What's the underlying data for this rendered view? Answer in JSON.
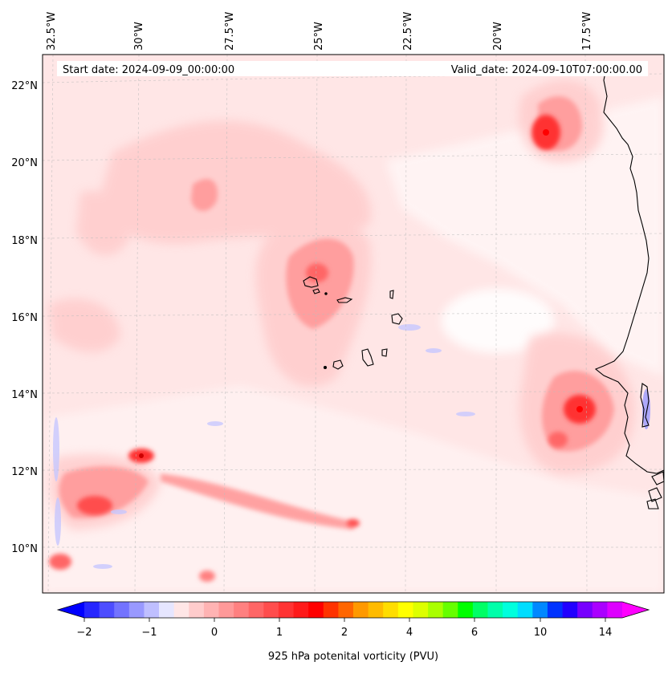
{
  "map": {
    "start_label": "Start date: 2024-09-09_00:00:00",
    "valid_label": "Valid_date: 2024-09-10T07:00:00.00",
    "lon_labels": [
      "32.5°W",
      "30°W",
      "27.5°W",
      "25°W",
      "22.5°W",
      "20°W",
      "17.5°W"
    ],
    "lat_labels": [
      "22°N",
      "20°N",
      "18°N",
      "16°N",
      "14°N",
      "12°N",
      "10°N"
    ],
    "gridlines": true,
    "coastline_color": "#000000",
    "field_features": [
      {
        "label": "background pale-red PV band",
        "level": 0.2
      },
      {
        "label": "NE maximum near Western Sahara coast",
        "level": 2.0
      },
      {
        "label": "SE vortex off Senegal",
        "level": 2.5
      },
      {
        "label": "SW filament maximum",
        "level": 2.5
      },
      {
        "label": "central band near Cabo Verde",
        "level": 1.0
      }
    ]
  },
  "colorbar": {
    "label": "925 hPa potenital vorticity (PVU)",
    "tick_labels": [
      "−2",
      "−1",
      "0",
      "1",
      "2",
      "4",
      "6",
      "10",
      "14"
    ],
    "colors": [
      "#0000ff",
      "#2626ff",
      "#4d4dff",
      "#7373ff",
      "#9999ff",
      "#bfbfff",
      "#e6e6ff",
      "#ffe6e6",
      "#ffcccc",
      "#ffb3b3",
      "#ff9999",
      "#ff8080",
      "#ff6666",
      "#ff4d4d",
      "#ff3333",
      "#ff1a1a",
      "#ff0000",
      "#ff3300",
      "#ff6600",
      "#ff9900",
      "#ffbb00",
      "#ffdd00",
      "#ffff00",
      "#ddff00",
      "#aaff00",
      "#66ff00",
      "#00ff00",
      "#00ff66",
      "#00ffaa",
      "#00ffdd",
      "#00ddff",
      "#0088ff",
      "#0033ff",
      "#2200ff",
      "#7700ff",
      "#aa00ff",
      "#dd00ff",
      "#ff00ff"
    ]
  }
}
